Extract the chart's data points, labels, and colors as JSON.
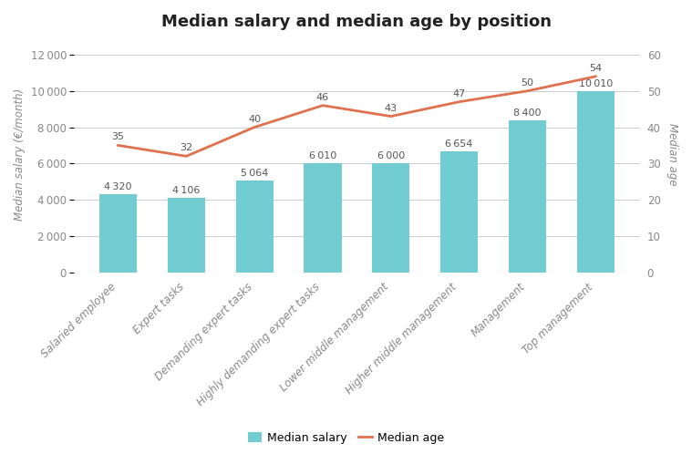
{
  "title": "Median salary and median age by position",
  "categories": [
    "Salaried employee",
    "Expert tasks",
    "Demanding expert tasks",
    "Highly demanding expert tasks",
    "Lower middle management",
    "Higher middle management",
    "Management",
    "Top management"
  ],
  "salary_values": [
    4320,
    4106,
    5064,
    6010,
    6000,
    6654,
    8400,
    10010
  ],
  "age_values": [
    35,
    32,
    40,
    46,
    43,
    47,
    50,
    54
  ],
  "salary_labels": [
    "4 320",
    "4 106",
    "5 064",
    "6 010",
    "6 000",
    "6 654",
    "8 400",
    "10 010"
  ],
  "age_labels": [
    "35",
    "32",
    "40",
    "46",
    "43",
    "47",
    "50",
    "54"
  ],
  "bar_color": "#72cdd3",
  "line_color": "#e0714e",
  "ylabel_left": "Median salary (€/month)",
  "ylabel_right": "Median age",
  "ylim_left": [
    0,
    13000
  ],
  "ylim_right": [
    0,
    65
  ],
  "yticks_left": [
    0,
    2000,
    4000,
    6000,
    8000,
    10000,
    12000
  ],
  "ytick_labels_left": [
    "0",
    "2 000",
    "4 000",
    "6 000",
    "8 000",
    "10 000",
    "12 000"
  ],
  "yticks_right": [
    0,
    10,
    20,
    30,
    40,
    50,
    60
  ],
  "ytick_labels_right": [
    "0",
    "10",
    "20",
    "30",
    "40",
    "50",
    "60"
  ],
  "background_color": "#ffffff",
  "grid_color": "#cccccc",
  "title_fontsize": 13,
  "label_fontsize": 8.5,
  "tick_fontsize": 8.5,
  "bar_label_fontsize": 8,
  "age_label_fontsize": 8,
  "legend_salary": "Median salary",
  "legend_age": "Median age",
  "legend_fontsize": 9
}
